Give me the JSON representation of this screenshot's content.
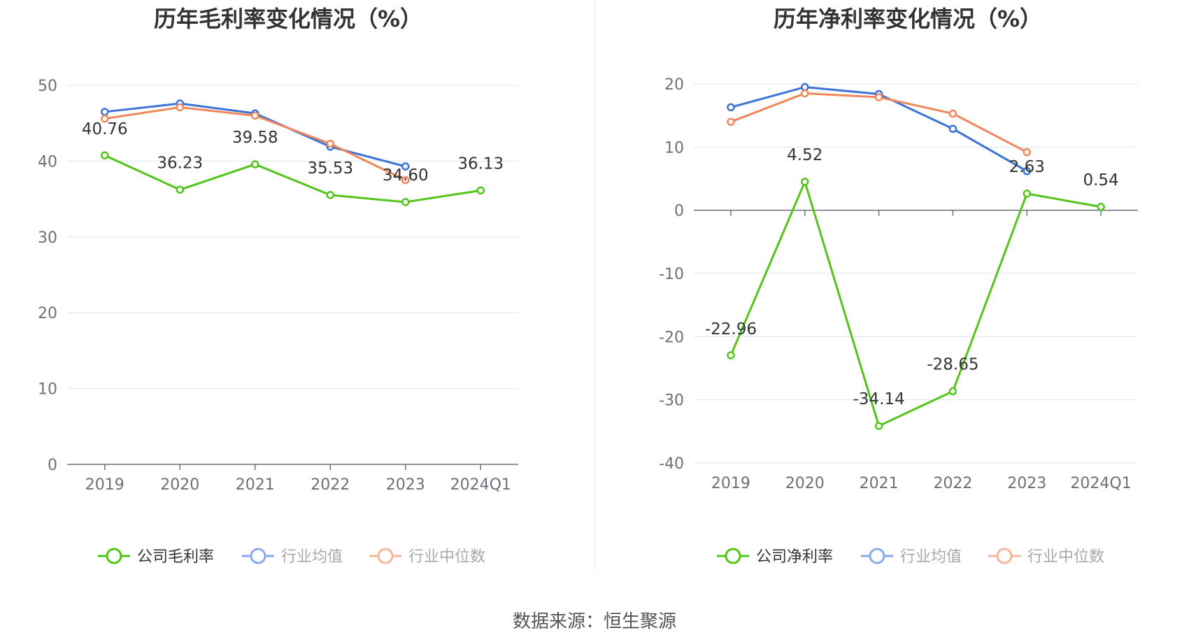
{
  "colors": {
    "company": "#52c41a",
    "average": "#3b73d9",
    "median": "#f0875a",
    "grid": "#dfe4f0",
    "axis": "#6e7079",
    "divider": "#eeeeee"
  },
  "source_text": "数据来源：恒生聚源",
  "chart_data": [
    {
      "type": "line",
      "title": "历年毛利率变化情况（%）",
      "categories": [
        "2019",
        "2020",
        "2021",
        "2022",
        "2023",
        "2024Q1"
      ],
      "ylim": [
        0,
        50
      ],
      "yticks": [
        0,
        10,
        20,
        30,
        40,
        50
      ],
      "series": [
        {
          "name": "公司毛利率",
          "key": "company",
          "values": [
            40.76,
            36.23,
            39.58,
            35.53,
            34.6,
            36.13
          ],
          "labels": [
            "40.76",
            "36.23",
            "39.58",
            "35.53",
            "34.60",
            "36.13"
          ]
        },
        {
          "name": "行业均值",
          "key": "average",
          "values": [
            46.5,
            47.6,
            46.3,
            41.9,
            39.3,
            null
          ]
        },
        {
          "name": "行业中位数",
          "key": "median",
          "values": [
            45.6,
            47.1,
            46.0,
            42.3,
            37.5,
            null
          ]
        }
      ]
    },
    {
      "type": "line",
      "title": "历年净利率变化情况（%）",
      "categories": [
        "2019",
        "2020",
        "2021",
        "2022",
        "2023",
        "2024Q1"
      ],
      "ylim": [
        -40,
        20
      ],
      "yticks": [
        -40,
        -30,
        -20,
        -10,
        0,
        10,
        20
      ],
      "series": [
        {
          "name": "公司净利率",
          "key": "company",
          "values": [
            -22.96,
            4.52,
            -34.14,
            -28.65,
            2.63,
            0.54
          ],
          "labels": [
            "-22.96",
            "4.52",
            "-34.14",
            "-28.65",
            "2.63",
            "0.54"
          ]
        },
        {
          "name": "行业均值",
          "key": "average",
          "values": [
            16.3,
            19.5,
            18.4,
            12.9,
            6.2,
            null
          ]
        },
        {
          "name": "行业中位数",
          "key": "median",
          "values": [
            14.0,
            18.5,
            17.9,
            15.3,
            9.2,
            null
          ]
        }
      ]
    }
  ]
}
